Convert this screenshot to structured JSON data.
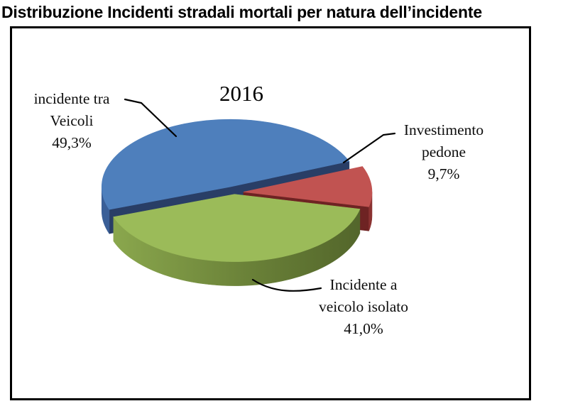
{
  "figure": {
    "title": "Distribuzione Incidenti stradali mortali per natura dell’incidente"
  },
  "chart_data": {
    "type": "pie",
    "style": "3d-exploded",
    "title": "2016",
    "unit": "percent",
    "legend": "none",
    "labels_position": "outside-with-leader-lines",
    "start_angle_deg": 250.3,
    "slices": [
      {
        "label": "incidente tra Veicoli",
        "label_lines": [
          "incidente tra",
          "Veicoli"
        ],
        "value": 49.3,
        "value_label": "49,3%",
        "colors": {
          "top": "#4E7FBC",
          "rim": "#3A5F97",
          "radial": "#293E66"
        }
      },
      {
        "label": "Investimento pedone",
        "label_lines": [
          "Investimento",
          "pedone"
        ],
        "value": 9.7,
        "value_label": "9,7%",
        "colors": {
          "top": "#C15351",
          "rim": "#8A3231",
          "radial": "#6E2323"
        }
      },
      {
        "label": "Incidente a veicolo isolato",
        "label_lines": [
          "Incidente a",
          "veicolo isolato"
        ],
        "value": 41.0,
        "value_label": "41,0%",
        "colors": {
          "top": "#9BBB59",
          "rim_light": "#8AA74D",
          "rim_mid": "#6A8138",
          "rim_dark": "#53662B",
          "radial": "#637934"
        }
      }
    ]
  }
}
